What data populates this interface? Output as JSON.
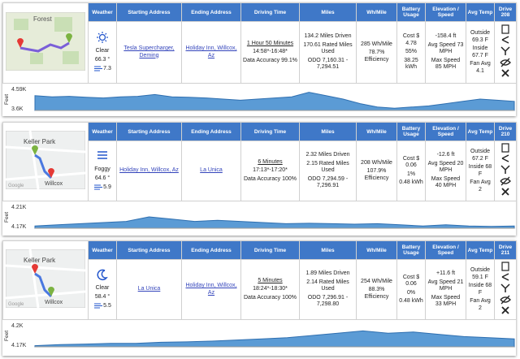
{
  "drives": [
    {
      "header": [
        "Weather",
        "Starting Address",
        "Ending Address",
        "Driving Time",
        "Miles",
        "Wh/Mile",
        "Battery Usage",
        "Elevation / Speed",
        "Avg Temp",
        "Drive 208"
      ],
      "map": {
        "labels": [
          "Forest"
        ]
      },
      "weather": {
        "condition": "Clear",
        "temperature": "66.3 °",
        "wind": "7.3"
      },
      "start_address": "Tesla Supercharger, Deming",
      "end_address": "Holiday Inn, Willcox, Az",
      "driving_time": {
        "duration": "1 Hour 50 Minutes",
        "span": "14:58*-16:48*",
        "accuracy": "Data Accuracy 99.1%"
      },
      "miles": [
        "134.2 Miles Driven",
        "170.61 Rated Miles Used",
        "ODO 7,160.31 - 7,294.51"
      ],
      "wh_mile": [
        "285 Wh/Mile",
        "78.7% Efficiency"
      ],
      "battery": [
        "Cost $ 4.78",
        "55%",
        "38.25 kWh"
      ],
      "elevation_speed": [
        "-158.4 ft",
        "Avg Speed 73 MPH",
        "Max Speed 85 MPH"
      ],
      "avg_temp": [
        "Outside 69.3 F",
        "Inside 67.7 F",
        "Fan Avg 4.1"
      ],
      "elevation_chart": {
        "axis_label": "Feet",
        "ticks": [
          "4.59K",
          "3.6K"
        ]
      }
    },
    {
      "header": [
        "Weather",
        "Starting Address",
        "Ending Address",
        "Driving Time",
        "Miles",
        "Wh/Mile",
        "Battery Usage",
        "Elevation / Speed",
        "Avg Temp",
        "Drive 210"
      ],
      "map": {
        "labels": [
          "Keller Park",
          "Willcox",
          "Google"
        ]
      },
      "weather": {
        "condition": "Foggy",
        "temperature": "64.6 °",
        "wind": "5.9"
      },
      "start_address": "Holiday Inn, Willcox, Az",
      "end_address": "La Unica",
      "driving_time": {
        "duration": "6 Minutes",
        "span": "17:13*-17:20*",
        "accuracy": "Data Accuracy 100%"
      },
      "miles": [
        "2.32 Miles Driven",
        "2.15 Rated Miles Used",
        "ODO 7,294.59 - 7,296.91"
      ],
      "wh_mile": [
        "208 Wh/Mile",
        "107.9% Efficiency"
      ],
      "battery": [
        "Cost $ 0.06",
        "1%",
        "0.48 kWh"
      ],
      "elevation_speed": [
        "-12.6 ft",
        "Avg Speed 20 MPH",
        "Max Speed 40 MPH"
      ],
      "avg_temp": [
        "Outside 67.2 F",
        "Inside 68 F",
        "Fan Avg 2"
      ],
      "elevation_chart": {
        "axis_label": "Feet",
        "ticks": [
          "4.21K",
          "4.17K"
        ]
      }
    },
    {
      "header": [
        "Weather",
        "Starting Address",
        "Ending Address",
        "Driving Time",
        "Miles",
        "Wh/Mile",
        "Battery Usage",
        "Elevation / Speed",
        "Avg Temp",
        "Drive 211"
      ],
      "map": {
        "labels": [
          "Keller Park",
          "Willcox",
          "Google"
        ]
      },
      "weather": {
        "condition": "Clear",
        "temperature": "58.4 °",
        "wind": "5.5"
      },
      "start_address": "La Unica",
      "end_address": "Holiday Inn, Willcox, Az",
      "driving_time": {
        "duration": "5 Minutes",
        "span": "18:24*-18:30*",
        "accuracy": "Data Accuracy 100%"
      },
      "miles": [
        "1.89 Miles Driven",
        "2.14 Rated Miles Used",
        "ODO 7,296.91 - 7,298.80"
      ],
      "wh_mile": [
        "254 Wh/Mile",
        "88.3% Efficiency"
      ],
      "battery": [
        "Cost $ 0.06",
        "0%",
        "0.48 kWh"
      ],
      "elevation_speed": [
        "+11.6 ft",
        "Avg Speed 21 MPH",
        "Max Speed 33 MPH"
      ],
      "avg_temp": [
        "Outside 59.1 F",
        "Inside 68 F",
        "Fan Avg 2"
      ],
      "elevation_chart": {
        "axis_label": "Feet",
        "ticks": [
          "4.2K",
          "4.17K"
        ]
      }
    }
  ]
}
